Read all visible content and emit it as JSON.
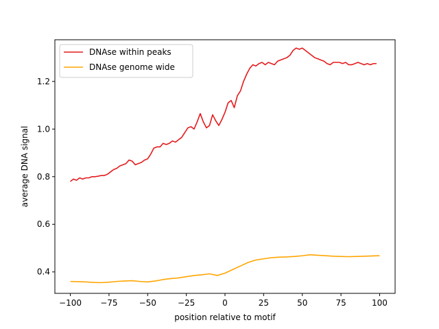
{
  "chart_data": {
    "type": "line",
    "xlabel": "position relative to motif",
    "ylabel": "average DNA signal",
    "xlim": [
      -110,
      110
    ],
    "ylim": [
      0.31,
      1.375
    ],
    "xticks": [
      -100,
      -75,
      -50,
      -25,
      0,
      25,
      50,
      75,
      100
    ],
    "yticks": [
      0.4,
      0.6,
      0.8,
      1.0,
      1.2
    ],
    "ytick_labels": [
      "0.4",
      "0.6",
      "0.8",
      "1.0",
      "1.2"
    ],
    "grid": false,
    "legend_position": "top-left",
    "series": [
      {
        "name": "DNAse within peaks",
        "color": "#e41a1c",
        "x": [
          -100,
          -98,
          -96,
          -94,
          -92,
          -90,
          -88,
          -86,
          -84,
          -82,
          -80,
          -78,
          -76,
          -74,
          -72,
          -70,
          -68,
          -66,
          -64,
          -62,
          -60,
          -58,
          -56,
          -54,
          -52,
          -50,
          -48,
          -46,
          -44,
          -42,
          -40,
          -38,
          -36,
          -34,
          -32,
          -30,
          -28,
          -26,
          -24,
          -22,
          -20,
          -18,
          -16,
          -14,
          -12,
          -10,
          -8,
          -6,
          -4,
          -2,
          0,
          2,
          4,
          6,
          8,
          10,
          12,
          14,
          16,
          18,
          20,
          22,
          24,
          26,
          28,
          30,
          32,
          34,
          36,
          38,
          40,
          42,
          44,
          46,
          48,
          50,
          52,
          54,
          56,
          58,
          60,
          62,
          64,
          66,
          68,
          70,
          72,
          74,
          76,
          78,
          80,
          82,
          84,
          86,
          88,
          90,
          92,
          94,
          96,
          98
        ],
        "values": [
          0.78,
          0.79,
          0.785,
          0.795,
          0.79,
          0.795,
          0.795,
          0.8,
          0.8,
          0.802,
          0.805,
          0.805,
          0.81,
          0.82,
          0.83,
          0.835,
          0.845,
          0.85,
          0.855,
          0.87,
          0.865,
          0.85,
          0.855,
          0.86,
          0.87,
          0.875,
          0.895,
          0.92,
          0.925,
          0.925,
          0.94,
          0.935,
          0.94,
          0.95,
          0.945,
          0.955,
          0.965,
          0.985,
          1.005,
          1.01,
          1.0,
          1.03,
          1.065,
          1.03,
          1.005,
          1.015,
          1.06,
          1.035,
          1.015,
          1.04,
          1.07,
          1.11,
          1.12,
          1.09,
          1.14,
          1.16,
          1.2,
          1.23,
          1.255,
          1.27,
          1.265,
          1.275,
          1.28,
          1.27,
          1.28,
          1.275,
          1.27,
          1.285,
          1.29,
          1.295,
          1.3,
          1.31,
          1.33,
          1.34,
          1.335,
          1.34,
          1.33,
          1.32,
          1.31,
          1.3,
          1.295,
          1.29,
          1.285,
          1.275,
          1.27,
          1.28,
          1.28,
          1.28,
          1.275,
          1.28,
          1.27,
          1.27,
          1.275,
          1.28,
          1.275,
          1.27,
          1.275,
          1.27,
          1.275,
          1.275
        ]
      },
      {
        "name": "DNAse genome wide",
        "color": "#ffa500",
        "x": [
          -100,
          -95,
          -90,
          -85,
          -80,
          -75,
          -70,
          -65,
          -60,
          -55,
          -50,
          -45,
          -40,
          -35,
          -30,
          -25,
          -20,
          -15,
          -10,
          -5,
          0,
          5,
          10,
          15,
          20,
          25,
          30,
          35,
          40,
          45,
          50,
          55,
          60,
          65,
          70,
          75,
          80,
          85,
          90,
          95,
          100
        ],
        "values": [
          0.36,
          0.359,
          0.358,
          0.356,
          0.355,
          0.357,
          0.36,
          0.362,
          0.363,
          0.36,
          0.358,
          0.362,
          0.368,
          0.372,
          0.375,
          0.38,
          0.385,
          0.388,
          0.392,
          0.385,
          0.395,
          0.41,
          0.425,
          0.44,
          0.45,
          0.455,
          0.46,
          0.462,
          0.463,
          0.465,
          0.468,
          0.472,
          0.47,
          0.468,
          0.466,
          0.465,
          0.464,
          0.465,
          0.466,
          0.467,
          0.468
        ]
      }
    ]
  }
}
